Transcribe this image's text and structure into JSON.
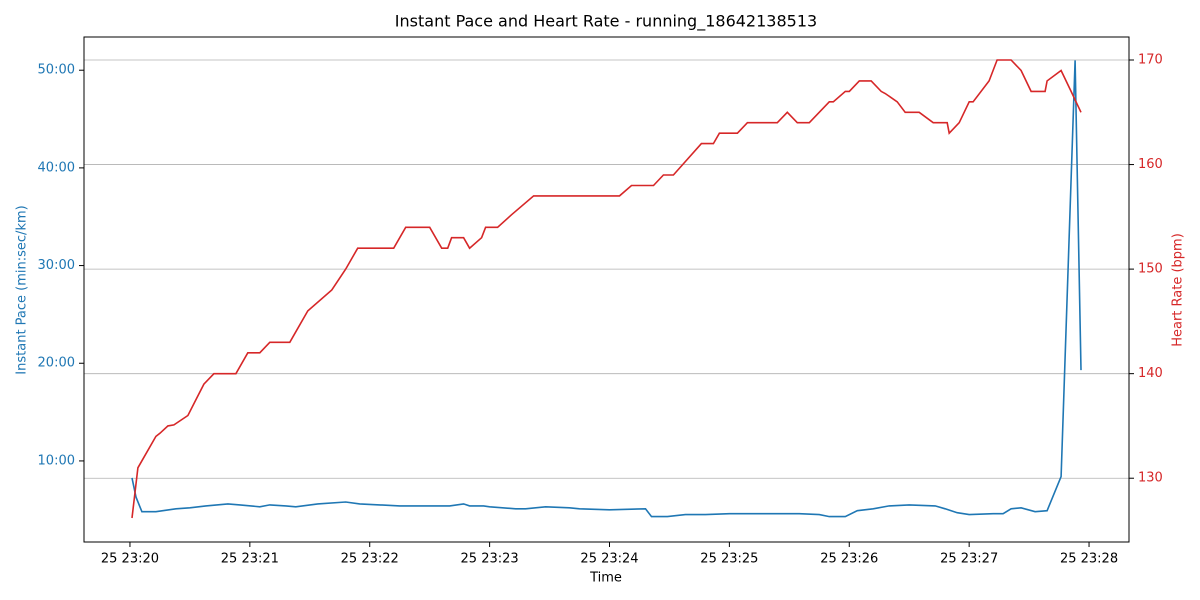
{
  "chart_data": {
    "type": "line",
    "title": "Instant Pace and Heart Rate - running_18642138513",
    "xlabel": "Time",
    "ylabel": "Instant Pace (min:sec/km)",
    "y2label": "Heart Rate (bpm)",
    "xlim": [
      "25 23:19:37",
      "25 23:28:20"
    ],
    "xticks": [
      {
        "value": "25 23:20:00",
        "label": "25 23:20"
      },
      {
        "value": "25 23:21:00",
        "label": "25 23:21"
      },
      {
        "value": "25 23:22:00",
        "label": "25 23:22"
      },
      {
        "value": "25 23:23:00",
        "label": "25 23:23"
      },
      {
        "value": "25 23:24:00",
        "label": "25 23:24"
      },
      {
        "value": "25 23:25:00",
        "label": "25 23:25"
      },
      {
        "value": "25 23:26:00",
        "label": "25 23:26"
      },
      {
        "value": "25 23:27:00",
        "label": "25 23:27"
      },
      {
        "value": "25 23:28:00",
        "label": "25 23:28"
      }
    ],
    "ylim": [
      1.7,
      53.4
    ],
    "yticks": [
      {
        "value": 10,
        "label": "10:00"
      },
      {
        "value": 20,
        "label": "20:00"
      },
      {
        "value": 30,
        "label": "30:00"
      },
      {
        "value": 40,
        "label": "40:00"
      },
      {
        "value": 50,
        "label": "50:00"
      }
    ],
    "y2lim": [
      123.9,
      172.2
    ],
    "y2ticks": [
      130,
      140,
      150,
      160,
      170
    ],
    "grid": "y2",
    "series": [
      {
        "name": "Instant Pace",
        "color": "#1f77b4",
        "x": [
          "25 23:20:01",
          "25 23:20:03",
          "25 23:20:06",
          "25 23:20:13",
          "25 23:20:23",
          "25 23:20:30",
          "25 23:20:38",
          "25 23:20:49",
          "25 23:20:55",
          "25 23:21:05",
          "25 23:21:10",
          "25 23:21:18",
          "25 23:21:23",
          "25 23:21:34",
          "25 23:21:48",
          "25 23:21:55",
          "25 23:22:15",
          "25 23:22:40",
          "25 23:22:47",
          "25 23:22:50",
          "25 23:22:57",
          "25 23:23:00",
          "25 23:23:13",
          "25 23:23:18",
          "25 23:23:28",
          "25 23:23:40",
          "25 23:23:45",
          "25 23:24:00",
          "25 23:24:18",
          "25 23:24:21",
          "25 23:24:29",
          "25 23:24:38",
          "25 23:24:48",
          "25 23:25:00",
          "25 23:25:35",
          "25 23:25:45",
          "25 23:25:50",
          "25 23:25:58",
          "25 23:26:04",
          "25 23:26:12",
          "25 23:26:20",
          "25 23:26:30",
          "25 23:26:43",
          "25 23:26:48",
          "25 23:26:54",
          "25 23:27:00",
          "25 23:27:12",
          "25 23:27:17",
          "25 23:27:21",
          "25 23:27:26",
          "25 23:27:33",
          "25 23:27:39",
          "25 23:27:46",
          "25 23:27:53",
          "25 23:27:56"
        ],
        "values": [
          8.26,
          6.3,
          4.8,
          4.8,
          5.1,
          5.2,
          5.4,
          5.6,
          5.5,
          5.3,
          5.5,
          5.4,
          5.3,
          5.6,
          5.8,
          5.6,
          5.4,
          5.4,
          5.6,
          5.4,
          5.4,
          5.3,
          5.1,
          5.1,
          5.3,
          5.2,
          5.1,
          5.0,
          5.1,
          4.3,
          4.3,
          4.5,
          4.5,
          4.6,
          4.6,
          4.5,
          4.3,
          4.3,
          4.9,
          5.1,
          5.4,
          5.5,
          5.4,
          5.1,
          4.7,
          4.5,
          4.6,
          4.6,
          5.1,
          5.2,
          4.8,
          4.9,
          8.4,
          51.0,
          19.3
        ]
      },
      {
        "name": "Heart Rate",
        "color": "#d62728",
        "axis": "y2",
        "x": [
          "25 23:20:01",
          "25 23:20:04",
          "25 23:20:07",
          "25 23:20:13",
          "25 23:20:15",
          "25 23:20:19",
          "25 23:20:22",
          "25 23:20:29",
          "25 23:20:33",
          "25 23:20:37",
          "25 23:20:42",
          "25 23:20:53",
          "25 23:20:59",
          "25 23:21:05",
          "25 23:21:10",
          "25 23:21:20",
          "25 23:21:23",
          "25 23:21:29",
          "25 23:21:41",
          "25 23:21:48",
          "25 23:21:54",
          "25 23:22:12",
          "25 23:22:18",
          "25 23:22:30",
          "25 23:22:36",
          "25 23:22:39",
          "25 23:22:41",
          "25 23:22:47",
          "25 23:22:50",
          "25 23:22:56",
          "25 23:22:58",
          "25 23:23:04",
          "25 23:23:11",
          "25 23:23:22",
          "25 23:24:05",
          "25 23:24:11",
          "25 23:24:22",
          "25 23:24:27",
          "25 23:24:32",
          "25 23:24:46",
          "25 23:24:52",
          "25 23:24:55",
          "25 23:25:04",
          "25 23:25:09",
          "25 23:25:24",
          "25 23:25:29",
          "25 23:25:34",
          "25 23:25:40",
          "25 23:25:50",
          "25 23:25:52",
          "25 23:25:58",
          "25 23:26:00",
          "25 23:26:05",
          "25 23:26:11",
          "25 23:26:16",
          "25 23:26:18",
          "25 23:26:24",
          "25 23:26:28",
          "25 23:26:35",
          "25 23:26:42",
          "25 23:26:49",
          "25 23:26:50",
          "25 23:26:55",
          "25 23:27:00",
          "25 23:27:02",
          "25 23:27:10",
          "25 23:27:14",
          "25 23:27:21",
          "25 23:27:26",
          "25 23:27:31",
          "25 23:27:38",
          "25 23:27:39",
          "25 23:27:46",
          "25 23:27:51",
          "25 23:27:56"
        ],
        "values": [
          126.2,
          131,
          132,
          134,
          134.3,
          135,
          135.1,
          136,
          137.5,
          139,
          140,
          140,
          142,
          142,
          143,
          143,
          144,
          146,
          148,
          150,
          152,
          152,
          154,
          154,
          152,
          152,
          153,
          153,
          152,
          153,
          154,
          154,
          155.2,
          157,
          157,
          158,
          158,
          159,
          159,
          162,
          162,
          163,
          163,
          164,
          164,
          165,
          164,
          164,
          166,
          166,
          167,
          167,
          168,
          168,
          167,
          166.8,
          166,
          165,
          165,
          164,
          164,
          163,
          164,
          166,
          166,
          168,
          170,
          170,
          169,
          167,
          167,
          168,
          169,
          167,
          165
        ]
      }
    ]
  }
}
